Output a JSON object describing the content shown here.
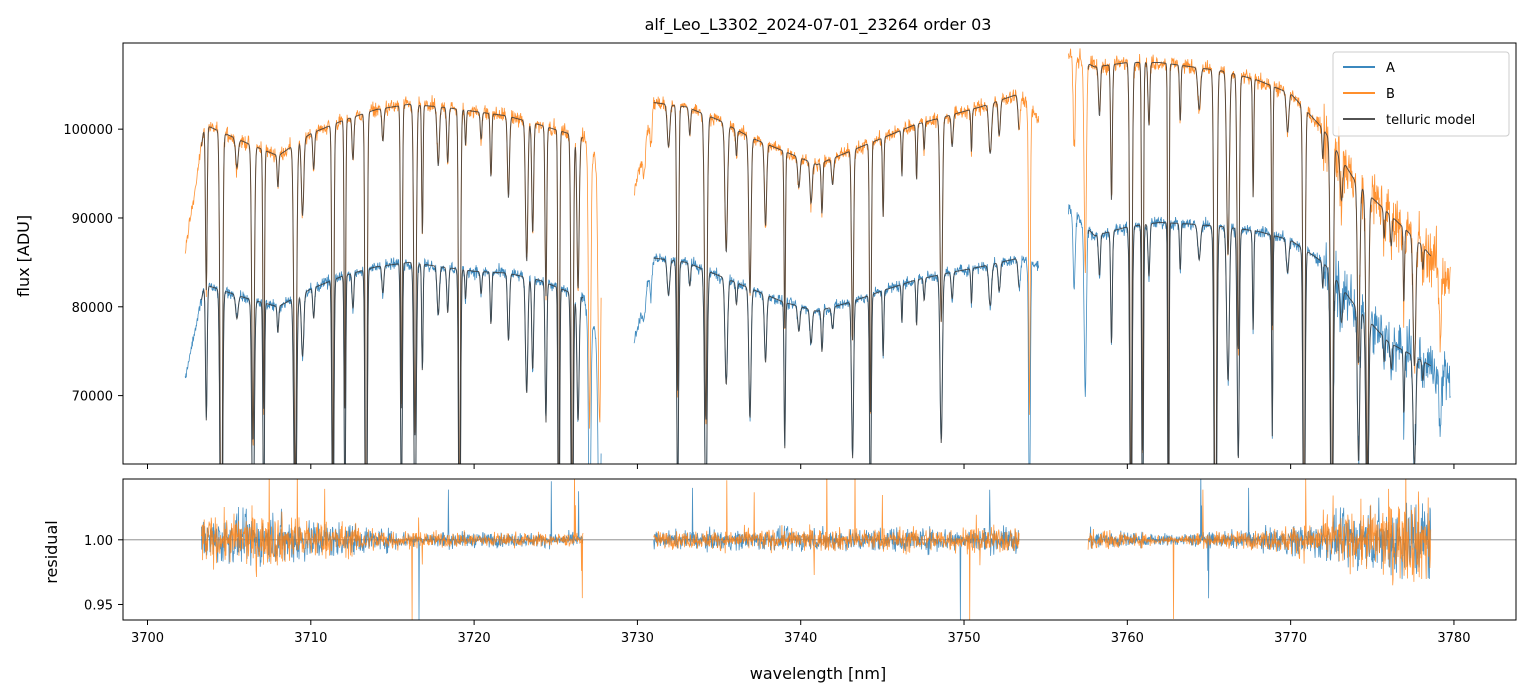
{
  "chart_data": {
    "type": "line",
    "title": "alf_Leo_L3302_2024-07-01_23264  order 03",
    "xlabel": "wavelength [nm]",
    "xlim": [
      3698.5,
      3783.8
    ],
    "xticks": [
      "3700",
      "3710",
      "3720",
      "3730",
      "3740",
      "3750",
      "3760",
      "3770",
      "3780"
    ],
    "xtick_values": [
      3700,
      3710,
      3720,
      3730,
      3740,
      3750,
      3760,
      3770,
      3780
    ],
    "legend_position": "top-right",
    "colors": {
      "A": "#1f77b4",
      "B": "#ff7f0e",
      "model": "#3a3a3a",
      "refline": "#808080"
    },
    "top_panel": {
      "ylabel": "flux [ADU]",
      "ylim": [
        62300,
        109700
      ],
      "yticks": [
        "70000",
        "80000",
        "90000",
        "100000"
      ],
      "ytick_values": [
        70000,
        80000,
        90000,
        100000
      ],
      "legend": [
        "A",
        "B",
        "telluric model"
      ],
      "segments": [
        {
          "range": [
            3702.3,
            3727.8
          ],
          "model_range": [
            3703.3,
            3726.7
          ],
          "A": [
            [
              3702.3,
              72000
            ],
            [
              3703.5,
              82500
            ],
            [
              3706,
              81000
            ],
            [
              3708,
              80000
            ],
            [
              3710,
              82000
            ],
            [
              3712,
              83500
            ],
            [
              3714,
              84500
            ],
            [
              3716,
              85000
            ],
            [
              3718,
              84500
            ],
            [
              3720,
              84000
            ],
            [
              3722,
              83800
            ],
            [
              3724,
              83000
            ],
            [
              3726.7,
              81000
            ],
            [
              3727.8,
              75000
            ]
          ],
          "B": [
            [
              3702.3,
              86000
            ],
            [
              3703.5,
              100500
            ],
            [
              3706,
              98500
            ],
            [
              3708,
              97000
            ],
            [
              3710,
              99500
            ],
            [
              3712,
              101000
            ],
            [
              3714,
              102200
            ],
            [
              3716,
              102800
            ],
            [
              3718,
              102500
            ],
            [
              3720,
              102000
            ],
            [
              3722,
              101500
            ],
            [
              3724,
              100500
            ],
            [
              3726.7,
              99000
            ],
            [
              3727.8,
              96000
            ]
          ]
        },
        {
          "range": [
            3729.8,
            3754.6
          ],
          "model_range": [
            3731.0,
            3753.4
          ],
          "A": [
            [
              3729.8,
              76000
            ],
            [
              3731,
              85500
            ],
            [
              3733,
              85000
            ],
            [
              3735,
              83500
            ],
            [
              3737,
              82000
            ],
            [
              3739,
              80500
            ],
            [
              3741,
              79500
            ],
            [
              3743,
              80500
            ],
            [
              3745,
              81800
            ],
            [
              3747,
              83000
            ],
            [
              3749,
              83800
            ],
            [
              3751,
              84500
            ],
            [
              3753.4,
              85500
            ],
            [
              3754.6,
              84500
            ]
          ],
          "B": [
            [
              3729.8,
              93000
            ],
            [
              3731,
              103000
            ],
            [
              3733,
              102500
            ],
            [
              3735,
              101000
            ],
            [
              3737,
              99000
            ],
            [
              3739,
              97500
            ],
            [
              3741,
              96000
            ],
            [
              3743,
              97500
            ],
            [
              3745,
              99000
            ],
            [
              3747,
              100500
            ],
            [
              3749,
              101500
            ],
            [
              3751,
              102500
            ],
            [
              3753.4,
              104000
            ],
            [
              3754.6,
              101000
            ]
          ]
        },
        {
          "range": [
            3756.4,
            3779.8
          ],
          "model_range": [
            3757.6,
            3778.6
          ],
          "A": [
            [
              3756.4,
              91000
            ],
            [
              3758,
              88000
            ],
            [
              3760,
              89000
            ],
            [
              3762,
              89500
            ],
            [
              3764,
              89300
            ],
            [
              3766,
              89000
            ],
            [
              3768,
              88500
            ],
            [
              3770,
              87500
            ],
            [
              3772,
              85000
            ],
            [
              3774,
              80000
            ],
            [
              3776,
              76000
            ],
            [
              3778,
              74000
            ],
            [
              3779.8,
              72000
            ]
          ],
          "B": [
            [
              3756.4,
              108500
            ],
            [
              3758,
              107000
            ],
            [
              3760,
              107500
            ],
            [
              3762,
              107500
            ],
            [
              3764,
              107000
            ],
            [
              3766,
              106500
            ],
            [
              3768,
              105500
            ],
            [
              3770,
              104000
            ],
            [
              3772,
              100000
            ],
            [
              3774,
              94000
            ],
            [
              3776,
              90500
            ],
            [
              3778,
              87000
            ],
            [
              3779.8,
              83000
            ]
          ]
        }
      ]
    },
    "bottom_panel": {
      "ylabel": "residual",
      "ylim": [
        0.938,
        1.047
      ],
      "yticks": [
        "0.95",
        "1.00"
      ],
      "ytick_values": [
        0.95,
        1.0
      ],
      "reference_line": 1.0,
      "segments": [
        {
          "range": [
            3703.3,
            3726.7
          ],
          "noise": [
            [
              3703.3,
              0.025
            ],
            [
              3708,
              0.028
            ],
            [
              3712,
              0.018
            ],
            [
              3716,
              0.009
            ],
            [
              3726.7,
              0.007
            ]
          ]
        },
        {
          "range": [
            3731.0,
            3753.4
          ],
          "noise": [
            [
              3731.0,
              0.009
            ],
            [
              3740,
              0.012
            ],
            [
              3746,
              0.013
            ],
            [
              3753.4,
              0.014
            ]
          ]
        },
        {
          "range": [
            3757.6,
            3778.6
          ],
          "noise": [
            [
              3757.6,
              0.012
            ],
            [
              3762,
              0.006
            ],
            [
              3768,
              0.01
            ],
            [
              3772,
              0.022
            ],
            [
              3776,
              0.04
            ],
            [
              3778.6,
              0.05
            ]
          ]
        }
      ]
    }
  }
}
